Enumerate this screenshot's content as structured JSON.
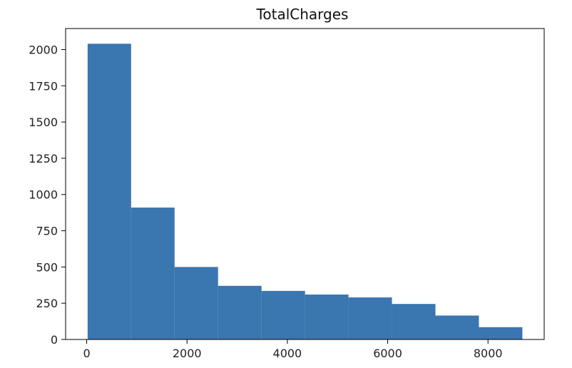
{
  "chart_data": {
    "type": "bar",
    "title": "TotalCharges",
    "xlabel": "",
    "ylabel": "",
    "bins": [
      {
        "x0": 18.8,
        "x1": 885.4,
        "count": 2040
      },
      {
        "x0": 885.4,
        "x1": 1752.1,
        "count": 910
      },
      {
        "x0": 1752.1,
        "x1": 2618.7,
        "count": 500
      },
      {
        "x0": 2618.7,
        "x1": 3485.4,
        "count": 370
      },
      {
        "x0": 3485.4,
        "x1": 4352.0,
        "count": 335
      },
      {
        "x0": 4352.0,
        "x1": 5218.7,
        "count": 310
      },
      {
        "x0": 5218.7,
        "x1": 6085.3,
        "count": 290
      },
      {
        "x0": 6085.3,
        "x1": 6952.0,
        "count": 245
      },
      {
        "x0": 6952.0,
        "x1": 7818.6,
        "count": 165
      },
      {
        "x0": 7818.6,
        "x1": 8685.3,
        "count": 85
      }
    ],
    "xlim": [
      -420,
      9120
    ],
    "ylim": [
      0,
      2145
    ],
    "xticks": [
      0,
      2000,
      4000,
      6000,
      8000
    ],
    "xtick_labels": [
      "0",
      "2000",
      "4000",
      "6000",
      "8000"
    ],
    "yticks": [
      0,
      250,
      500,
      750,
      1000,
      1250,
      1500,
      1750,
      2000
    ],
    "ytick_labels": [
      "0",
      "250",
      "500",
      "750",
      "1000",
      "1250",
      "1500",
      "1750",
      "2000"
    ],
    "grid": false,
    "colors": {
      "bar": "#3a76b0",
      "axis": "#000000"
    }
  }
}
